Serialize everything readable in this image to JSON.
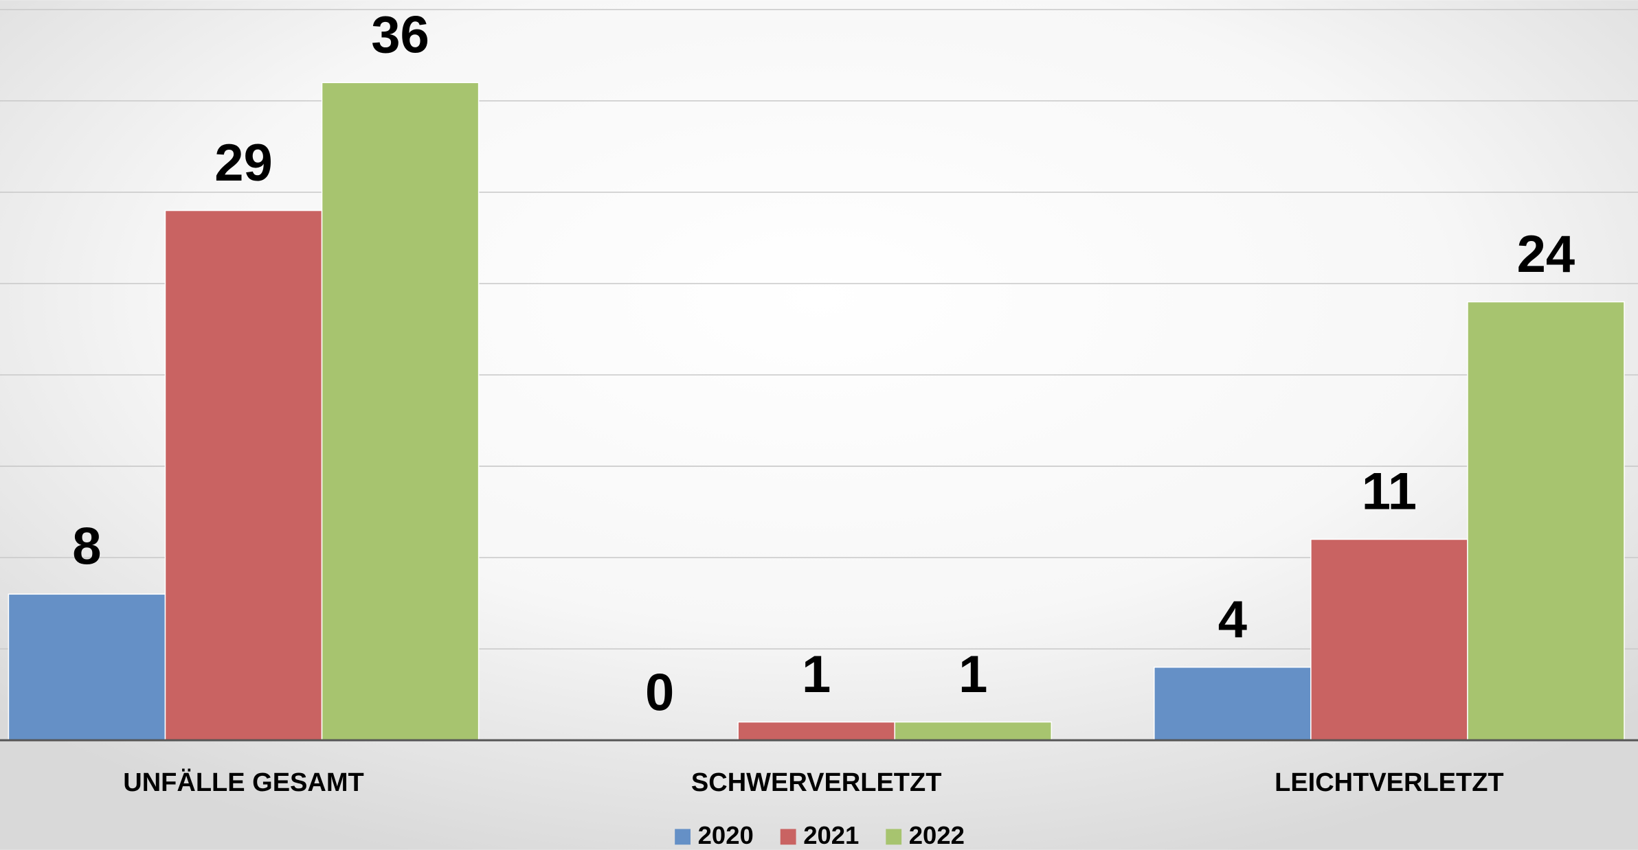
{
  "chart_data": {
    "type": "bar",
    "categories": [
      "UNFÄLLE GESAMT",
      "SCHWERVERLETZT",
      "LEICHTVERLETZT"
    ],
    "series": [
      {
        "name": "2020",
        "color": "#6590c6",
        "values": [
          8,
          0,
          4
        ]
      },
      {
        "name": "2021",
        "color": "#c96362",
        "values": [
          29,
          1,
          11
        ]
      },
      {
        "name": "2022",
        "color": "#a7c46f",
        "values": [
          36,
          1,
          24
        ]
      }
    ],
    "ylim": [
      0,
      40
    ],
    "yticks": [
      0,
      5,
      10,
      15,
      20,
      25,
      30,
      35,
      40
    ],
    "grid": true,
    "legend": "bottom"
  }
}
